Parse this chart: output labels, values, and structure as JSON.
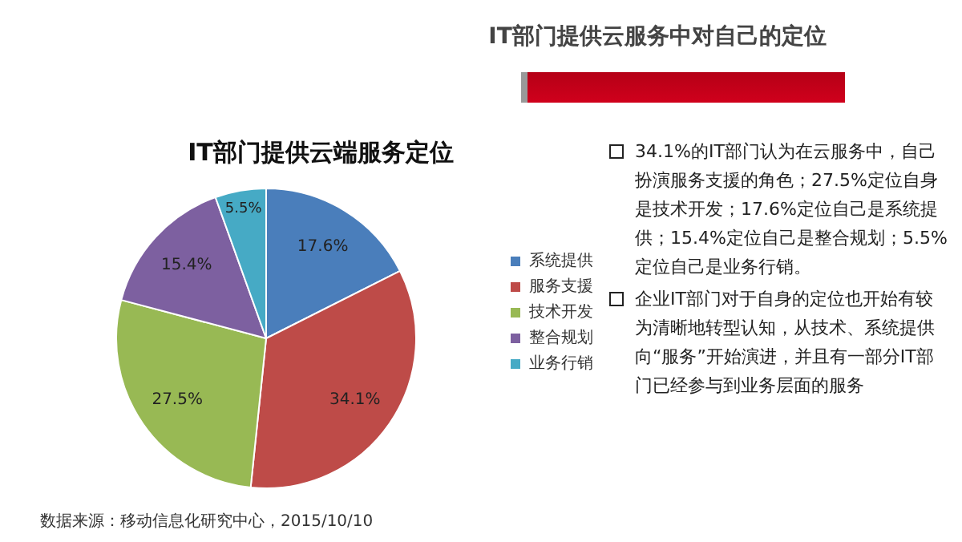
{
  "chart_data": {
    "type": "pie",
    "title": "IT部门提供云服务中对自己的定位",
    "subtitle": "IT部门提供云端服务定位",
    "categories": [
      "系统提供",
      "服务支援",
      "技术开发",
      "整合规划",
      "业务行销"
    ],
    "values": [
      17.6,
      34.1,
      27.5,
      15.4,
      5.5
    ],
    "colors": [
      "#4a7ebb",
      "#be4b48",
      "#98b954",
      "#7d60a0",
      "#46aac5"
    ],
    "value_labels": [
      "17.6%",
      "34.1%",
      "27.5%",
      "15.4%",
      "5.5%"
    ],
    "legend": "right",
    "annotations": [
      "34.1%的IT部门认为在云服务中，自己扮演服务支援的角色；27.5%定位自身是技术开发；17.6%定位自己是系统提供；15.4%定位自己是整合规划；5.5%定位自己是业务行销。",
      "企业IT部门对于自身的定位也开始有较为清晰地转型认知，从技术、系统提供向“服务”开始演进，并且有一部分IT部门已经参与到业务层面的服务",
      "数据来源：移动信息化研究中心，2015/10/10"
    ]
  }
}
